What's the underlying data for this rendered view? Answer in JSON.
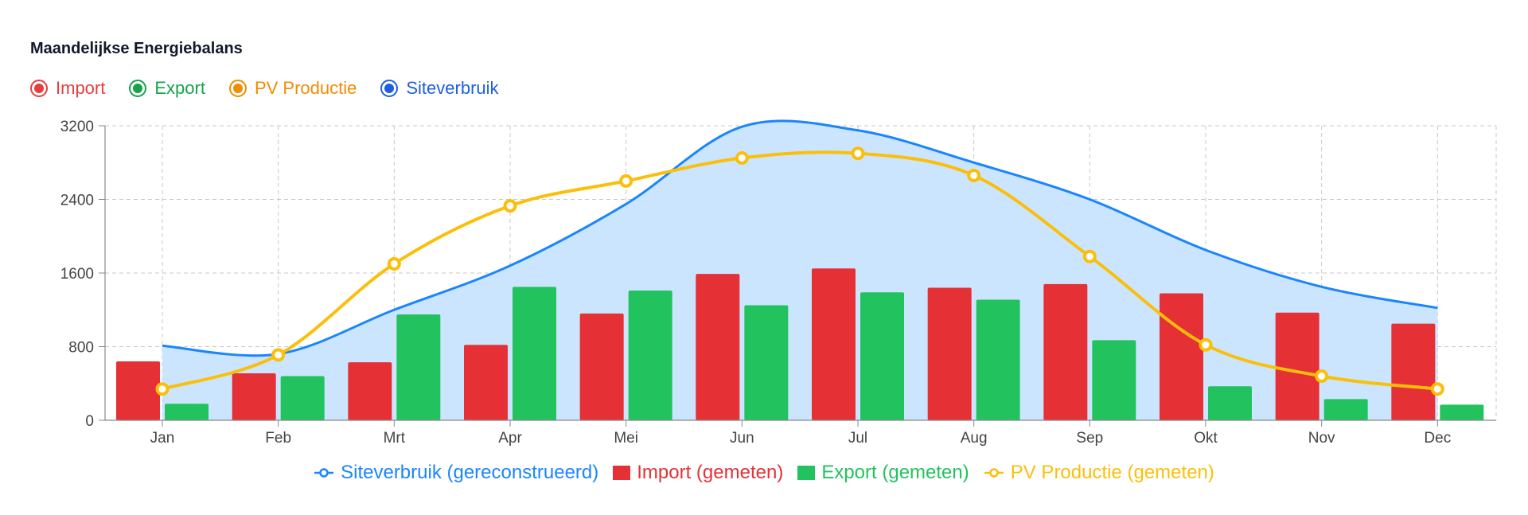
{
  "header": {
    "title": "Maandelijkse Energiebalans"
  },
  "toggles": [
    {
      "label": "Import",
      "color": "#e53e3e",
      "icon": "radio-checked-icon"
    },
    {
      "label": "Export",
      "color": "#16a34a",
      "icon": "radio-checked-icon"
    },
    {
      "label": "PV Productie",
      "color": "#f08c00",
      "icon": "radio-checked-icon"
    },
    {
      "label": "Siteverbruik",
      "color": "#1d5fe0",
      "icon": "radio-checked-icon"
    }
  ],
  "legend": [
    {
      "label": "Siteverbruik (gereconstrueerd)",
      "color": "#1a85ff",
      "kind": "line"
    },
    {
      "label": "Import (gemeten)",
      "color": "#e53035",
      "kind": "box"
    },
    {
      "label": "Export (gemeten)",
      "color": "#22c35e",
      "kind": "box"
    },
    {
      "label": "PV Productie (gemeten)",
      "color": "#fbbf0a",
      "kind": "line"
    }
  ],
  "chart_data": {
    "type": "bar",
    "categories": [
      "Jan",
      "Feb",
      "Mrt",
      "Apr",
      "Mei",
      "Jun",
      "Jul",
      "Aug",
      "Sep",
      "Okt",
      "Nov",
      "Dec"
    ],
    "ylim": [
      0,
      3200
    ],
    "yticks": [
      0,
      800,
      1600,
      2400,
      3200
    ],
    "grid": true,
    "legend_position": "bottom",
    "series": [
      {
        "name": "Siteverbruik (gereconstrueerd)",
        "type": "area-line",
        "color": "#1a85ff",
        "fill": "#cce5ff",
        "values": [
          810,
          720,
          1200,
          1680,
          2350,
          3190,
          3150,
          2800,
          2400,
          1850,
          1450,
          1220
        ]
      },
      {
        "name": "Import (gemeten)",
        "type": "bar",
        "color": "#e53035",
        "values": [
          640,
          510,
          630,
          820,
          1160,
          1590,
          1650,
          1440,
          1480,
          1380,
          1170,
          1050
        ]
      },
      {
        "name": "Export (gemeten)",
        "type": "bar",
        "color": "#22c35e",
        "values": [
          180,
          480,
          1150,
          1450,
          1410,
          1250,
          1390,
          1310,
          870,
          370,
          230,
          170
        ]
      },
      {
        "name": "PV Productie (gemeten)",
        "type": "line",
        "color": "#fbbf0a",
        "values": [
          340,
          710,
          1700,
          2330,
          2600,
          2850,
          2900,
          2660,
          1780,
          820,
          480,
          340
        ]
      }
    ]
  }
}
